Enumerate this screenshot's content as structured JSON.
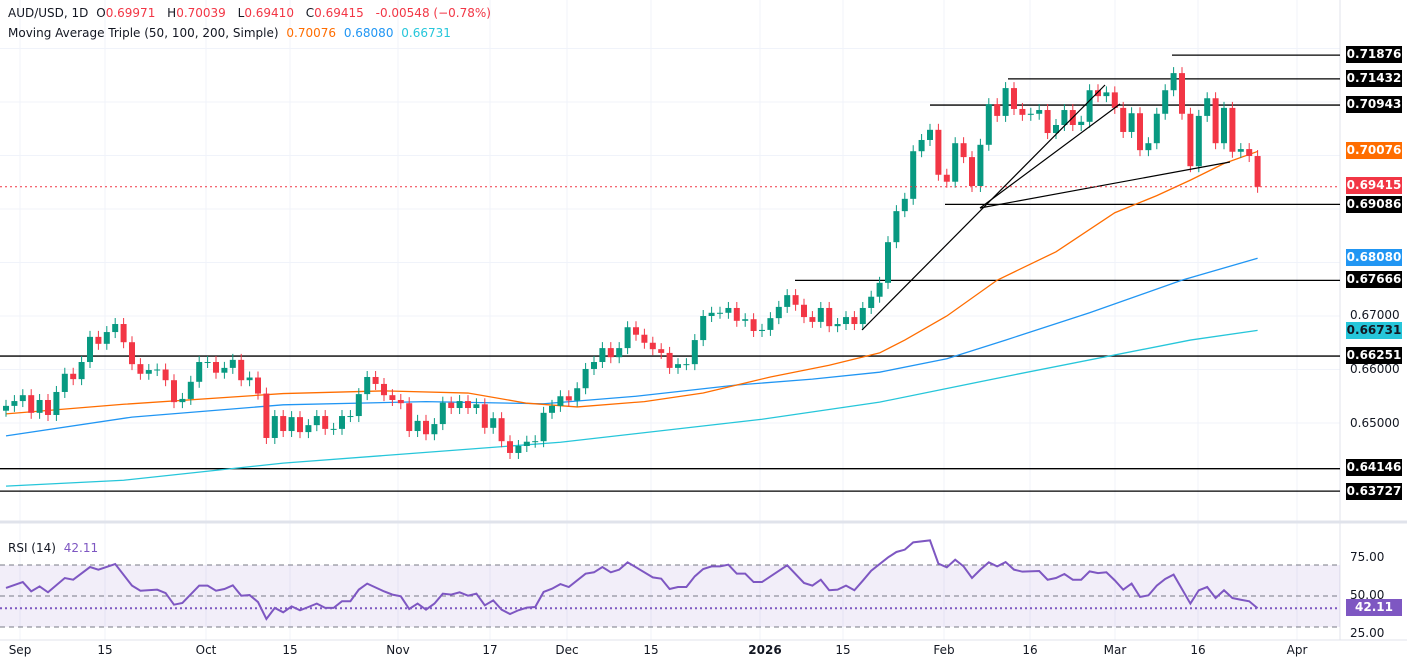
{
  "header": {
    "symbol": "AUD/USD, 1D",
    "open_label": "O",
    "open": "0.69971",
    "high_label": "H",
    "high": "0.70039",
    "low_label": "L",
    "low": "0.69410",
    "close_label": "C",
    "close": "0.69415",
    "change": "-0.00548 (−0.78%)",
    "ma_title": "Moving Average Triple (50, 100, 200, Simple)",
    "ma50": "0.70076",
    "ma100": "0.68080",
    "ma200": "0.66731"
  },
  "colors": {
    "up": "#089981",
    "down": "#f23645",
    "ma50": "#ff6d00",
    "ma100": "#2196f3",
    "ma200": "#26c6da",
    "rsi": "#7e57c2",
    "level": "#000000"
  },
  "price_axis": {
    "ticks": [
      "0.67000",
      "0.66000",
      "0.65000"
    ],
    "level_tags": [
      "0.71876",
      "0.71432",
      "0.70943",
      "0.69086",
      "0.67666",
      "0.66251",
      "0.64146",
      "0.63727"
    ],
    "ma50_tag": "0.70076",
    "ma100_tag": "0.68080",
    "ma200_tag": "0.66731",
    "last_price_tag": "0.69415"
  },
  "rsi": {
    "title": "RSI (14)",
    "value": "42.11",
    "ticks": [
      "75.00",
      "50.00",
      "25.00"
    ],
    "points": [
      [
        0,
        55.2
      ],
      [
        2,
        59.0
      ],
      [
        3,
        53.0
      ],
      [
        4,
        56.2
      ],
      [
        5,
        52.4
      ],
      [
        7,
        61.6
      ],
      [
        8,
        60.5
      ],
      [
        10,
        68.7
      ],
      [
        11,
        67.0
      ],
      [
        13,
        70.6
      ],
      [
        15,
        56.7
      ],
      [
        16,
        53.4
      ],
      [
        18,
        54.1
      ],
      [
        19,
        51.9
      ],
      [
        20,
        44.4
      ],
      [
        21,
        45.5
      ],
      [
        23,
        56.7
      ],
      [
        24,
        56.7
      ],
      [
        25,
        53.4
      ],
      [
        26,
        54.5
      ],
      [
        27,
        56.9
      ],
      [
        28,
        50.2
      ],
      [
        29,
        50.6
      ],
      [
        30,
        46.1
      ],
      [
        31,
        35.2
      ],
      [
        32,
        42.3
      ],
      [
        33,
        39.5
      ],
      [
        34,
        43.3
      ],
      [
        35,
        40.8
      ],
      [
        36,
        42.9
      ],
      [
        37,
        45.1
      ],
      [
        38,
        42.3
      ],
      [
        39,
        42.3
      ],
      [
        40,
        46.6
      ],
      [
        41,
        46.6
      ],
      [
        42,
        54.1
      ],
      [
        43,
        58.0
      ],
      [
        45,
        53.0
      ],
      [
        46,
        50.9
      ],
      [
        47,
        49.8
      ],
      [
        48,
        41.6
      ],
      [
        49,
        45.1
      ],
      [
        50,
        41.2
      ],
      [
        51,
        45.1
      ],
      [
        52,
        51.5
      ],
      [
        53,
        50.9
      ],
      [
        54,
        52.4
      ],
      [
        55,
        50.2
      ],
      [
        56,
        51.5
      ],
      [
        57,
        44.0
      ],
      [
        58,
        47.2
      ],
      [
        59,
        41.2
      ],
      [
        60,
        38.4
      ],
      [
        61,
        40.8
      ],
      [
        62,
        42.5
      ],
      [
        63,
        42.9
      ],
      [
        64,
        52.6
      ],
      [
        65,
        54.7
      ],
      [
        66,
        57.7
      ],
      [
        67,
        55.8
      ],
      [
        69,
        64.4
      ],
      [
        70,
        65.3
      ],
      [
        71,
        68.7
      ],
      [
        72,
        65.3
      ],
      [
        73,
        67.0
      ],
      [
        74,
        71.7
      ],
      [
        75,
        68.5
      ],
      [
        77,
        62.0
      ],
      [
        78,
        61.2
      ],
      [
        79,
        54.5
      ],
      [
        80,
        55.8
      ],
      [
        81,
        55.8
      ],
      [
        82,
        62.7
      ],
      [
        83,
        67.4
      ],
      [
        84,
        69.1
      ],
      [
        85,
        69.1
      ],
      [
        86,
        70.2
      ],
      [
        87,
        64.4
      ],
      [
        88,
        64.4
      ],
      [
        89,
        59.0
      ],
      [
        90,
        59.0
      ],
      [
        93,
        69.8
      ],
      [
        95,
        58.4
      ],
      [
        96,
        56.7
      ],
      [
        97,
        60.5
      ],
      [
        98,
        53.7
      ],
      [
        99,
        54.1
      ],
      [
        100,
        56.7
      ],
      [
        101,
        53.7
      ],
      [
        102,
        59.9
      ],
      [
        103,
        66.3
      ],
      [
        105,
        74.9
      ],
      [
        106,
        78.4
      ],
      [
        107,
        79.9
      ],
      [
        108,
        84.6
      ],
      [
        110,
        85.9
      ],
      [
        111,
        70.9
      ],
      [
        112,
        68.5
      ],
      [
        113,
        73.4
      ],
      [
        114,
        69.1
      ],
      [
        115,
        61.6
      ],
      [
        116,
        67.0
      ],
      [
        117,
        71.7
      ],
      [
        118,
        69.1
      ],
      [
        119,
        71.9
      ],
      [
        120,
        67.0
      ],
      [
        121,
        65.7
      ],
      [
        123,
        66.1
      ],
      [
        124,
        60.5
      ],
      [
        125,
        61.6
      ],
      [
        126,
        64.2
      ],
      [
        127,
        60.5
      ],
      [
        128,
        60.5
      ],
      [
        129,
        65.9
      ],
      [
        130,
        64.8
      ],
      [
        131,
        65.3
      ],
      [
        132,
        60.1
      ],
      [
        133,
        54.1
      ],
      [
        134,
        58.0
      ],
      [
        135,
        49.4
      ],
      [
        136,
        50.4
      ],
      [
        137,
        56.7
      ],
      [
        138,
        61.0
      ],
      [
        139,
        63.8
      ],
      [
        141,
        45.1
      ],
      [
        142,
        53.7
      ],
      [
        143,
        55.8
      ],
      [
        144,
        48.7
      ],
      [
        145,
        53.7
      ],
      [
        146,
        48.7
      ],
      [
        147,
        47.6
      ],
      [
        148,
        46.6
      ],
      [
        149,
        42.11
      ]
    ]
  },
  "date_axis": [
    "Sep",
    "15",
    "Oct",
    "15",
    "Nov",
    "17",
    "Dec",
    "15",
    "2026",
    "15",
    "Feb",
    "16",
    "Mar",
    "16",
    "Apr"
  ],
  "chart_data": {
    "type": "candlestick",
    "first_open": 0.6523,
    "closes": [
      0.6532,
      0.6541,
      0.6552,
      0.6519,
      0.6543,
      0.6515,
      0.6558,
      0.6592,
      0.6582,
      0.6614,
      0.6661,
      0.6648,
      0.667,
      0.6685,
      0.6651,
      0.661,
      0.6592,
      0.6599,
      0.66,
      0.658,
      0.6539,
      0.6545,
      0.6577,
      0.6614,
      0.6614,
      0.6594,
      0.6603,
      0.6618,
      0.658,
      0.6585,
      0.6555,
      0.6472,
      0.6513,
      0.6485,
      0.6511,
      0.6483,
      0.6496,
      0.6513,
      0.6489,
      0.6489,
      0.6513,
      0.6513,
      0.6554,
      0.6586,
      0.6573,
      0.6552,
      0.6543,
      0.6537,
      0.6485,
      0.6504,
      0.6479,
      0.6498,
      0.6538,
      0.6528,
      0.6541,
      0.6528,
      0.6535,
      0.6491,
      0.6509,
      0.6466,
      0.6444,
      0.6457,
      0.6465,
      0.6466,
      0.6519,
      0.6532,
      0.655,
      0.6542,
      0.6565,
      0.6601,
      0.6614,
      0.664,
      0.6623,
      0.664,
      0.6679,
      0.6665,
      0.665,
      0.6638,
      0.6631,
      0.6603,
      0.661,
      0.661,
      0.6655,
      0.67,
      0.6706,
      0.6706,
      0.6715,
      0.6691,
      0.6694,
      0.6672,
      0.6674,
      0.6696,
      0.6717,
      0.6739,
      0.6721,
      0.6698,
      0.6689,
      0.6715,
      0.6681,
      0.6685,
      0.6698,
      0.6685,
      0.6715,
      0.6736,
      0.6762,
      0.6838,
      0.6896,
      0.6919,
      0.7008,
      0.7029,
      0.7048,
      0.6964,
      0.6951,
      0.7023,
      0.6997,
      0.6943,
      0.702,
      0.7096,
      0.7074,
      0.7126,
      0.7087,
      0.7076,
      0.7078,
      0.7085,
      0.7042,
      0.7057,
      0.7085,
      0.7057,
      0.7063,
      0.7122,
      0.7111,
      0.7118,
      0.7089,
      0.7044,
      0.7079,
      0.701,
      0.7023,
      0.7078,
      0.7122,
      0.7154,
      0.7078,
      0.698,
      0.7074,
      0.7107,
      0.7023,
      0.7089,
      0.7007,
      0.7012,
      0.6999,
      0.69415
    ],
    "ma50": [
      [
        0,
        0.6517
      ],
      [
        14,
        0.6535
      ],
      [
        33,
        0.6555
      ],
      [
        45,
        0.656
      ],
      [
        55,
        0.6556
      ],
      [
        62,
        0.6537
      ],
      [
        68,
        0.653
      ],
      [
        76,
        0.654
      ],
      [
        83,
        0.6556
      ],
      [
        91,
        0.6586
      ],
      [
        98,
        0.6608
      ],
      [
        104,
        0.6631
      ],
      [
        107,
        0.6655
      ],
      [
        112,
        0.67
      ],
      [
        118,
        0.6767
      ],
      [
        125,
        0.682
      ],
      [
        132,
        0.6893
      ],
      [
        137,
        0.6925
      ],
      [
        141,
        0.6954
      ],
      [
        145,
        0.6985
      ],
      [
        149,
        0.70076
      ]
    ],
    "ma100": [
      [
        0,
        0.6476
      ],
      [
        15,
        0.6511
      ],
      [
        33,
        0.6534
      ],
      [
        50,
        0.654
      ],
      [
        64,
        0.6536
      ],
      [
        75,
        0.655
      ],
      [
        87,
        0.6571
      ],
      [
        96,
        0.6582
      ],
      [
        104,
        0.6595
      ],
      [
        112,
        0.662
      ],
      [
        119,
        0.6655
      ],
      [
        129,
        0.6706
      ],
      [
        140,
        0.6767
      ],
      [
        149,
        0.6808
      ]
    ],
    "ma200": [
      [
        0,
        0.6382
      ],
      [
        14,
        0.6393
      ],
      [
        33,
        0.6425
      ],
      [
        66,
        0.6464
      ],
      [
        90,
        0.6507
      ],
      [
        104,
        0.6539
      ],
      [
        120,
        0.659
      ],
      [
        141,
        0.6655
      ],
      [
        149,
        0.66731
      ]
    ],
    "levels": [
      0.71876,
      0.71432,
      0.70943,
      0.69086,
      0.67666,
      0.66251,
      0.64146,
      0.63727
    ],
    "last_price": 0.69415,
    "ylim": [
      0.633,
      0.7275
    ]
  }
}
